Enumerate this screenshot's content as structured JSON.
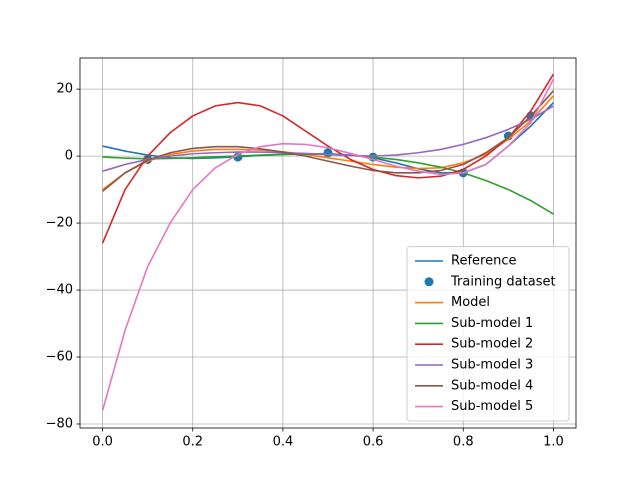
{
  "chart_data": {
    "type": "line",
    "x": [
      0,
      0.05,
      0.1,
      0.15,
      0.2,
      0.25,
      0.3,
      0.35,
      0.4,
      0.45,
      0.5,
      0.55,
      0.6,
      0.65,
      0.7,
      0.75,
      0.8,
      0.85,
      0.9,
      0.95,
      1.0
    ],
    "series": [
      {
        "name": "Reference",
        "color": "#1f77b4",
        "mode": "line",
        "values": [
          3,
          1.5,
          0.3,
          -0.5,
          -0.7,
          -0.5,
          -0.2,
          0.2,
          0.5,
          0.7,
          0.7,
          0.3,
          -0.5,
          -2,
          -3.8,
          -5,
          -5,
          -2.5,
          3,
          9,
          16
        ]
      },
      {
        "name": "Training dataset",
        "color": "#1f77b4",
        "mode": "markers",
        "x": [
          0.1,
          0.3,
          0.5,
          0.6,
          0.8,
          0.9,
          0.95
        ],
        "values": [
          -1,
          -0.3,
          1,
          -0.3,
          -5,
          6,
          12
        ]
      },
      {
        "name": "Model",
        "color": "#ff7f0e",
        "mode": "line",
        "values": [
          -10,
          -5,
          -1.5,
          0.5,
          1.5,
          2,
          2,
          1.8,
          1.3,
          0.5,
          -0.5,
          -1.5,
          -2.5,
          -3.3,
          -3.7,
          -3.5,
          -2,
          0.5,
          5,
          10.5,
          18
        ]
      },
      {
        "name": "Sub-model 1",
        "color": "#2ca02c",
        "mode": "line",
        "values": [
          -0.3,
          -0.6,
          -0.8,
          -0.7,
          -0.5,
          -0.2,
          0,
          0.3,
          0.5,
          0.6,
          0.5,
          0.2,
          -0.3,
          -1,
          -2,
          -3.3,
          -5,
          -7.3,
          -10,
          -13.3,
          -17.3
        ]
      },
      {
        "name": "Sub-model 2",
        "color": "#d62728",
        "mode": "line",
        "values": [
          -26,
          -10,
          0,
          7,
          12,
          15,
          16,
          15,
          12,
          7.5,
          3,
          -1,
          -4,
          -5.8,
          -6.5,
          -6,
          -4,
          0,
          5.5,
          13.5,
          24.5
        ]
      },
      {
        "name": "Sub-model 3",
        "color": "#9467bd",
        "mode": "line",
        "values": [
          -4.5,
          -2.5,
          -1,
          0,
          0.7,
          1,
          1.2,
          1.2,
          1,
          0.8,
          0.5,
          0.2,
          0,
          0.3,
          1,
          2,
          3.5,
          5.5,
          8,
          11,
          15
        ]
      },
      {
        "name": "Sub-model 4",
        "color": "#8c564b",
        "mode": "line",
        "values": [
          -10.5,
          -5,
          -1.2,
          1,
          2.3,
          2.8,
          2.8,
          2.2,
          1.2,
          0,
          -1.5,
          -3,
          -4.3,
          -5,
          -5,
          -4.3,
          -2.5,
          1,
          5.5,
          12,
          19.5
        ]
      },
      {
        "name": "Sub-model 5",
        "color": "#e377c2",
        "mode": "line",
        "values": [
          -76,
          -52,
          -33,
          -20,
          -10,
          -3.5,
          0.5,
          2.8,
          3.7,
          3.5,
          2.5,
          0.8,
          -1,
          -3,
          -4.5,
          -5.5,
          -5,
          -2.5,
          3,
          10,
          23
        ]
      }
    ],
    "xlim": [
      -0.05,
      1.05
    ],
    "ylim": [
      -81.2,
      29.3
    ],
    "xticks": [
      {
        "value": 0,
        "label": "0.0"
      },
      {
        "value": 0.2,
        "label": "0.2"
      },
      {
        "value": 0.4,
        "label": "0.4"
      },
      {
        "value": 0.6,
        "label": "0.6"
      },
      {
        "value": 0.8,
        "label": "0.8"
      },
      {
        "value": 1.0,
        "label": "1.0"
      }
    ],
    "yticks": [
      {
        "value": -80,
        "label": "−80"
      },
      {
        "value": -60,
        "label": "−60"
      },
      {
        "value": -40,
        "label": "−40"
      },
      {
        "value": -20,
        "label": "−20"
      },
      0,
      20
    ],
    "grid": true,
    "legend": "lower right"
  }
}
